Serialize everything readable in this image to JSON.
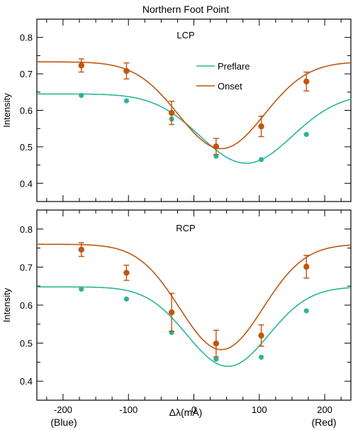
{
  "figure": {
    "title": "Northern Foot Point",
    "xlabel": "Δλ(mÅ)",
    "xlabel_left": "(Blue)",
    "xlabel_right": "(Red)"
  },
  "colors": {
    "preflare": "#2ab597",
    "onset": "#c0560f",
    "axis": "#000000"
  },
  "chart_data": [
    {
      "type": "line",
      "panel": "LCP",
      "annotation": "LCP",
      "ylabel": "Intensity",
      "xlim": [
        -240,
        240
      ],
      "ylim": [
        0.35,
        0.85
      ],
      "xticks": [
        -200,
        -100,
        0,
        100,
        200
      ],
      "yticks": [
        0.4,
        0.5,
        0.6,
        0.7,
        0.8
      ],
      "legend": {
        "placement": "upper-right",
        "entries": [
          "Preflare",
          "Onset"
        ]
      },
      "series": [
        {
          "name": "Preflare",
          "color": "#2ab597",
          "points": {
            "x": [
              -172,
              -103,
              -34,
              34,
              103,
              172
            ],
            "y": [
              0.641,
              0.626,
              0.576,
              0.474,
              0.465,
              0.534
            ]
          },
          "fit": {
            "baseline": 0.645,
            "depth": 0.19,
            "center": 80,
            "width": 100
          }
        },
        {
          "name": "Onset",
          "color": "#c0560f",
          "points": {
            "x": [
              -172,
              -103,
              -34,
              34,
              103,
              172
            ],
            "y": [
              0.723,
              0.708,
              0.593,
              0.501,
              0.556,
              0.679
            ],
            "err": [
              0.018,
              0.022,
              0.032,
              0.022,
              0.028,
              0.026
            ]
          },
          "fit": {
            "baseline": 0.733,
            "depth": 0.238,
            "center": 42,
            "width": 93
          }
        }
      ]
    },
    {
      "type": "line",
      "panel": "RCP",
      "annotation": "RCP",
      "ylabel": "Intensity",
      "xlim": [
        -240,
        240
      ],
      "ylim": [
        0.35,
        0.85
      ],
      "xticks": [
        -200,
        -100,
        0,
        100,
        200
      ],
      "yticks": [
        0.4,
        0.5,
        0.6,
        0.7,
        0.8
      ],
      "series": [
        {
          "name": "Preflare",
          "color": "#2ab597",
          "points": {
            "x": [
              -172,
              -103,
              -34,
              34,
              103,
              172
            ],
            "y": [
              0.642,
              0.616,
              0.528,
              0.458,
              0.463,
              0.585
            ]
          },
          "fit": {
            "baseline": 0.648,
            "depth": 0.209,
            "center": 52,
            "width": 88
          }
        },
        {
          "name": "Onset",
          "color": "#c0560f",
          "points": {
            "x": [
              -172,
              -103,
              -34,
              34,
              103,
              172
            ],
            "y": [
              0.746,
              0.685,
              0.581,
              0.499,
              0.52,
              0.701
            ],
            "err": [
              0.018,
              0.02,
              0.05,
              0.035,
              0.028,
              0.03
            ]
          },
          "fit": {
            "baseline": 0.76,
            "depth": 0.277,
            "center": 42,
            "width": 90
          }
        }
      ]
    }
  ]
}
